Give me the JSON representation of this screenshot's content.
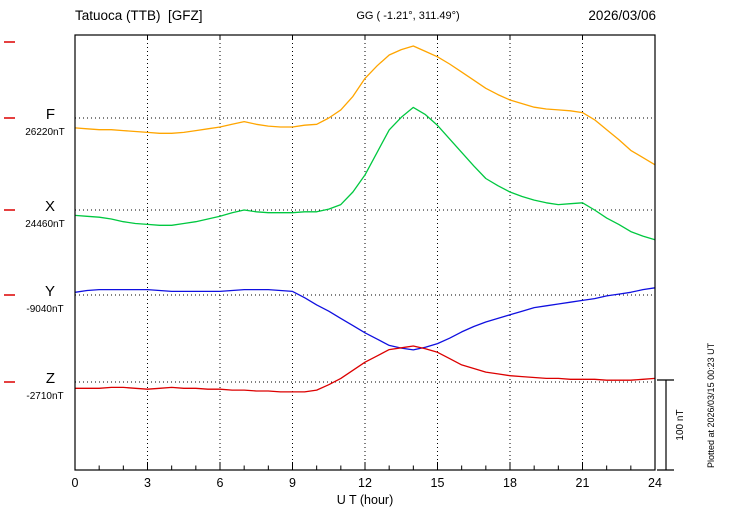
{
  "header": {
    "station": "Tatuoca (TTB)  [GFZ]",
    "coords": "GG ( -1.21°, 311.49°)",
    "date": "2026/03/06"
  },
  "axis": {
    "xlabel": "U T (hour)"
  },
  "scale_bar": {
    "label": "100 nT",
    "nT": 100
  },
  "plotted_note": "Plotted at 2026/03/15 00:23 UT",
  "chart_data": {
    "type": "line",
    "title": "Tatuoca (TTB) [GFZ] magnetogram 2026/03/06",
    "xlabel": "U T (hour)",
    "x_range": [
      0,
      24
    ],
    "x_ticks": [
      0,
      3,
      6,
      9,
      12,
      15,
      18,
      21,
      24
    ],
    "grid": "dotted vertical lines every 3 h; dotted horizontal baseline per channel",
    "legend_position": "left margin channel labels",
    "x": [
      0,
      0.5,
      1,
      1.5,
      2,
      2.5,
      3,
      3.5,
      4,
      4.5,
      5,
      5.5,
      6,
      6.5,
      7,
      7.5,
      8,
      8.5,
      9,
      9.5,
      10,
      10.5,
      11,
      11.5,
      12,
      12.5,
      13,
      13.5,
      14,
      14.5,
      15,
      15.5,
      16,
      16.5,
      17,
      17.5,
      18,
      18.5,
      19,
      19.5,
      20,
      20.5,
      21,
      21.5,
      22,
      22.5,
      23,
      23.5,
      24
    ],
    "series": [
      {
        "name": "F",
        "unit": "nT",
        "color": "#ffa500",
        "baseline": 26220,
        "baseline_label": "26220nT",
        "values": [
          26209,
          26208,
          26207,
          26207,
          26206,
          26205,
          26204,
          26203,
          26203,
          26204,
          26206,
          26208,
          26210,
          26213,
          26216,
          26213,
          26211,
          26210,
          26210,
          26212,
          26213,
          26220,
          26229,
          26244,
          26264,
          26278,
          26290,
          26296,
          26300,
          26294,
          26288,
          26280,
          26271,
          26262,
          26253,
          26246,
          26240,
          26236,
          26232,
          26230,
          26229,
          26228,
          26226,
          26218,
          26207,
          26196,
          26184,
          26176,
          26168
        ]
      },
      {
        "name": "X",
        "unit": "nT",
        "color": "#00c840",
        "baseline": 24460,
        "baseline_label": "24460nT",
        "values": [
          24454,
          24453,
          24452,
          24450,
          24447,
          24445,
          24444,
          24443,
          24443,
          24445,
          24447,
          24450,
          24453,
          24457,
          24460,
          24458,
          24457,
          24457,
          24457,
          24458,
          24458,
          24461,
          24466,
          24480,
          24499,
          24524,
          24549,
          24563,
          24574,
          24566,
          24554,
          24539,
          24524,
          24509,
          24495,
          24487,
          24480,
          24475,
          24471,
          24468,
          24466,
          24467,
          24468,
          24460,
          24451,
          24444,
          24436,
          24431,
          24427
        ]
      },
      {
        "name": "Y",
        "unit": "nT",
        "color": "#1010e0",
        "baseline": -9040,
        "baseline_label": "-9040nT",
        "values": [
          -9037,
          -9035,
          -9034,
          -9034,
          -9034,
          -9034,
          -9034,
          -9035,
          -9036,
          -9036,
          -9036,
          -9036,
          -9036,
          -9035,
          -9034,
          -9034,
          -9034,
          -9035,
          -9036,
          -9043,
          -9051,
          -9058,
          -9066,
          -9074,
          -9082,
          -9089,
          -9096,
          -9099,
          -9101,
          -9098,
          -9094,
          -9088,
          -9081,
          -9075,
          -9070,
          -9066,
          -9062,
          -9058,
          -9054,
          -9052,
          -9050,
          -9048,
          -9046,
          -9044,
          -9041,
          -9039,
          -9037,
          -9034,
          -9032
        ]
      },
      {
        "name": "Z",
        "unit": "nT",
        "color": "#dc0000",
        "baseline": -2710,
        "baseline_label": "-2710nT",
        "values": [
          -2717,
          -2717,
          -2717,
          -2716,
          -2716,
          -2717,
          -2718,
          -2717,
          -2716,
          -2717,
          -2717,
          -2718,
          -2718,
          -2719,
          -2719,
          -2720,
          -2720,
          -2721,
          -2721,
          -2721,
          -2719,
          -2713,
          -2706,
          -2697,
          -2688,
          -2681,
          -2674,
          -2672,
          -2670,
          -2673,
          -2677,
          -2684,
          -2691,
          -2695,
          -2699,
          -2701,
          -2703,
          -2704,
          -2705,
          -2706,
          -2706,
          -2707,
          -2707,
          -2707,
          -2708,
          -2708,
          -2708,
          -2707,
          -2706
        ]
      }
    ]
  }
}
